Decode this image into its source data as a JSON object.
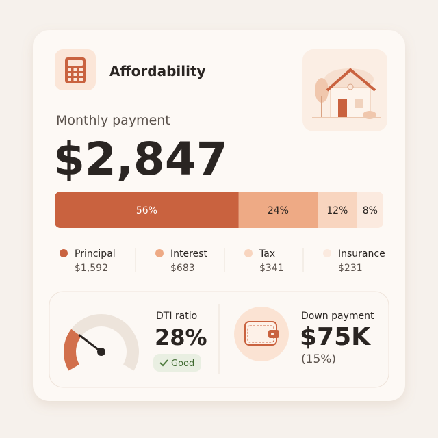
{
  "header": {
    "title": "Affordability"
  },
  "payment": {
    "label": "Monthly payment",
    "amount": "$2,847"
  },
  "breakdown": {
    "values": [
      56,
      24,
      12,
      8
    ],
    "value_labels": [
      "56%",
      "24%",
      "12%",
      "8%"
    ],
    "colors": [
      "#c9623f",
      "#eeaa85",
      "#f8d5bf",
      "#fbeadf"
    ],
    "items": [
      {
        "name": "Principal",
        "amount": "$1,592"
      },
      {
        "name": "Interest",
        "amount": "$683"
      },
      {
        "name": "Tax",
        "amount": "$341"
      },
      {
        "name": "Insurance",
        "amount": "$231"
      }
    ]
  },
  "dti": {
    "label": "DTI ratio",
    "value": 28,
    "value_label": "28%",
    "status": "Good"
  },
  "down_payment": {
    "label": "Down payment",
    "amount": "$75K",
    "percent": "(15%)"
  }
}
